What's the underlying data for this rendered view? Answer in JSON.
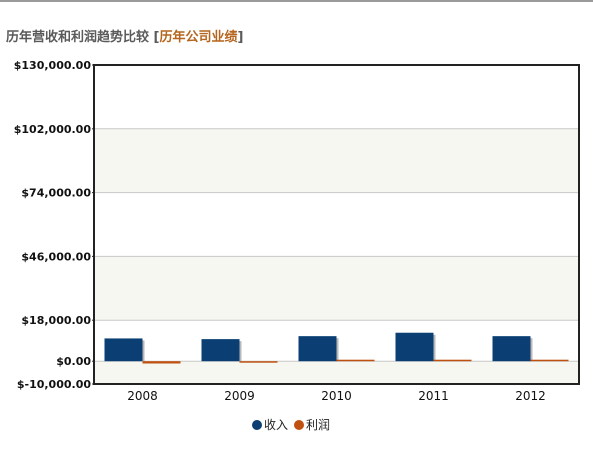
{
  "header": {
    "title": "历年营收和利润趋势比较",
    "link_label": "历年公司业绩",
    "bracket_open": "[",
    "bracket_close": "]"
  },
  "chart_data": {
    "type": "bar",
    "categories": [
      "2008",
      "2009",
      "2010",
      "2011",
      "2012"
    ],
    "series": [
      {
        "name": "收入",
        "color": "#0b3f74",
        "values": [
          10000,
          9700,
          11000,
          12500,
          11000
        ]
      },
      {
        "name": "利润",
        "color": "#c0500f",
        "values": [
          -1000,
          -200,
          300,
          400,
          150
        ]
      }
    ],
    "ylim": [
      -10000,
      130000
    ],
    "yticks": [
      130000,
      102000,
      74000,
      46000,
      18000,
      0,
      -10000
    ],
    "ytick_labels": [
      "$130,000.00",
      "$102,000.00",
      "$74,000.00",
      "$46,000.00",
      "$18,000.00",
      "$0.00",
      "$-10,000.00"
    ],
    "grid": true,
    "legend_position": "bottom-center"
  }
}
